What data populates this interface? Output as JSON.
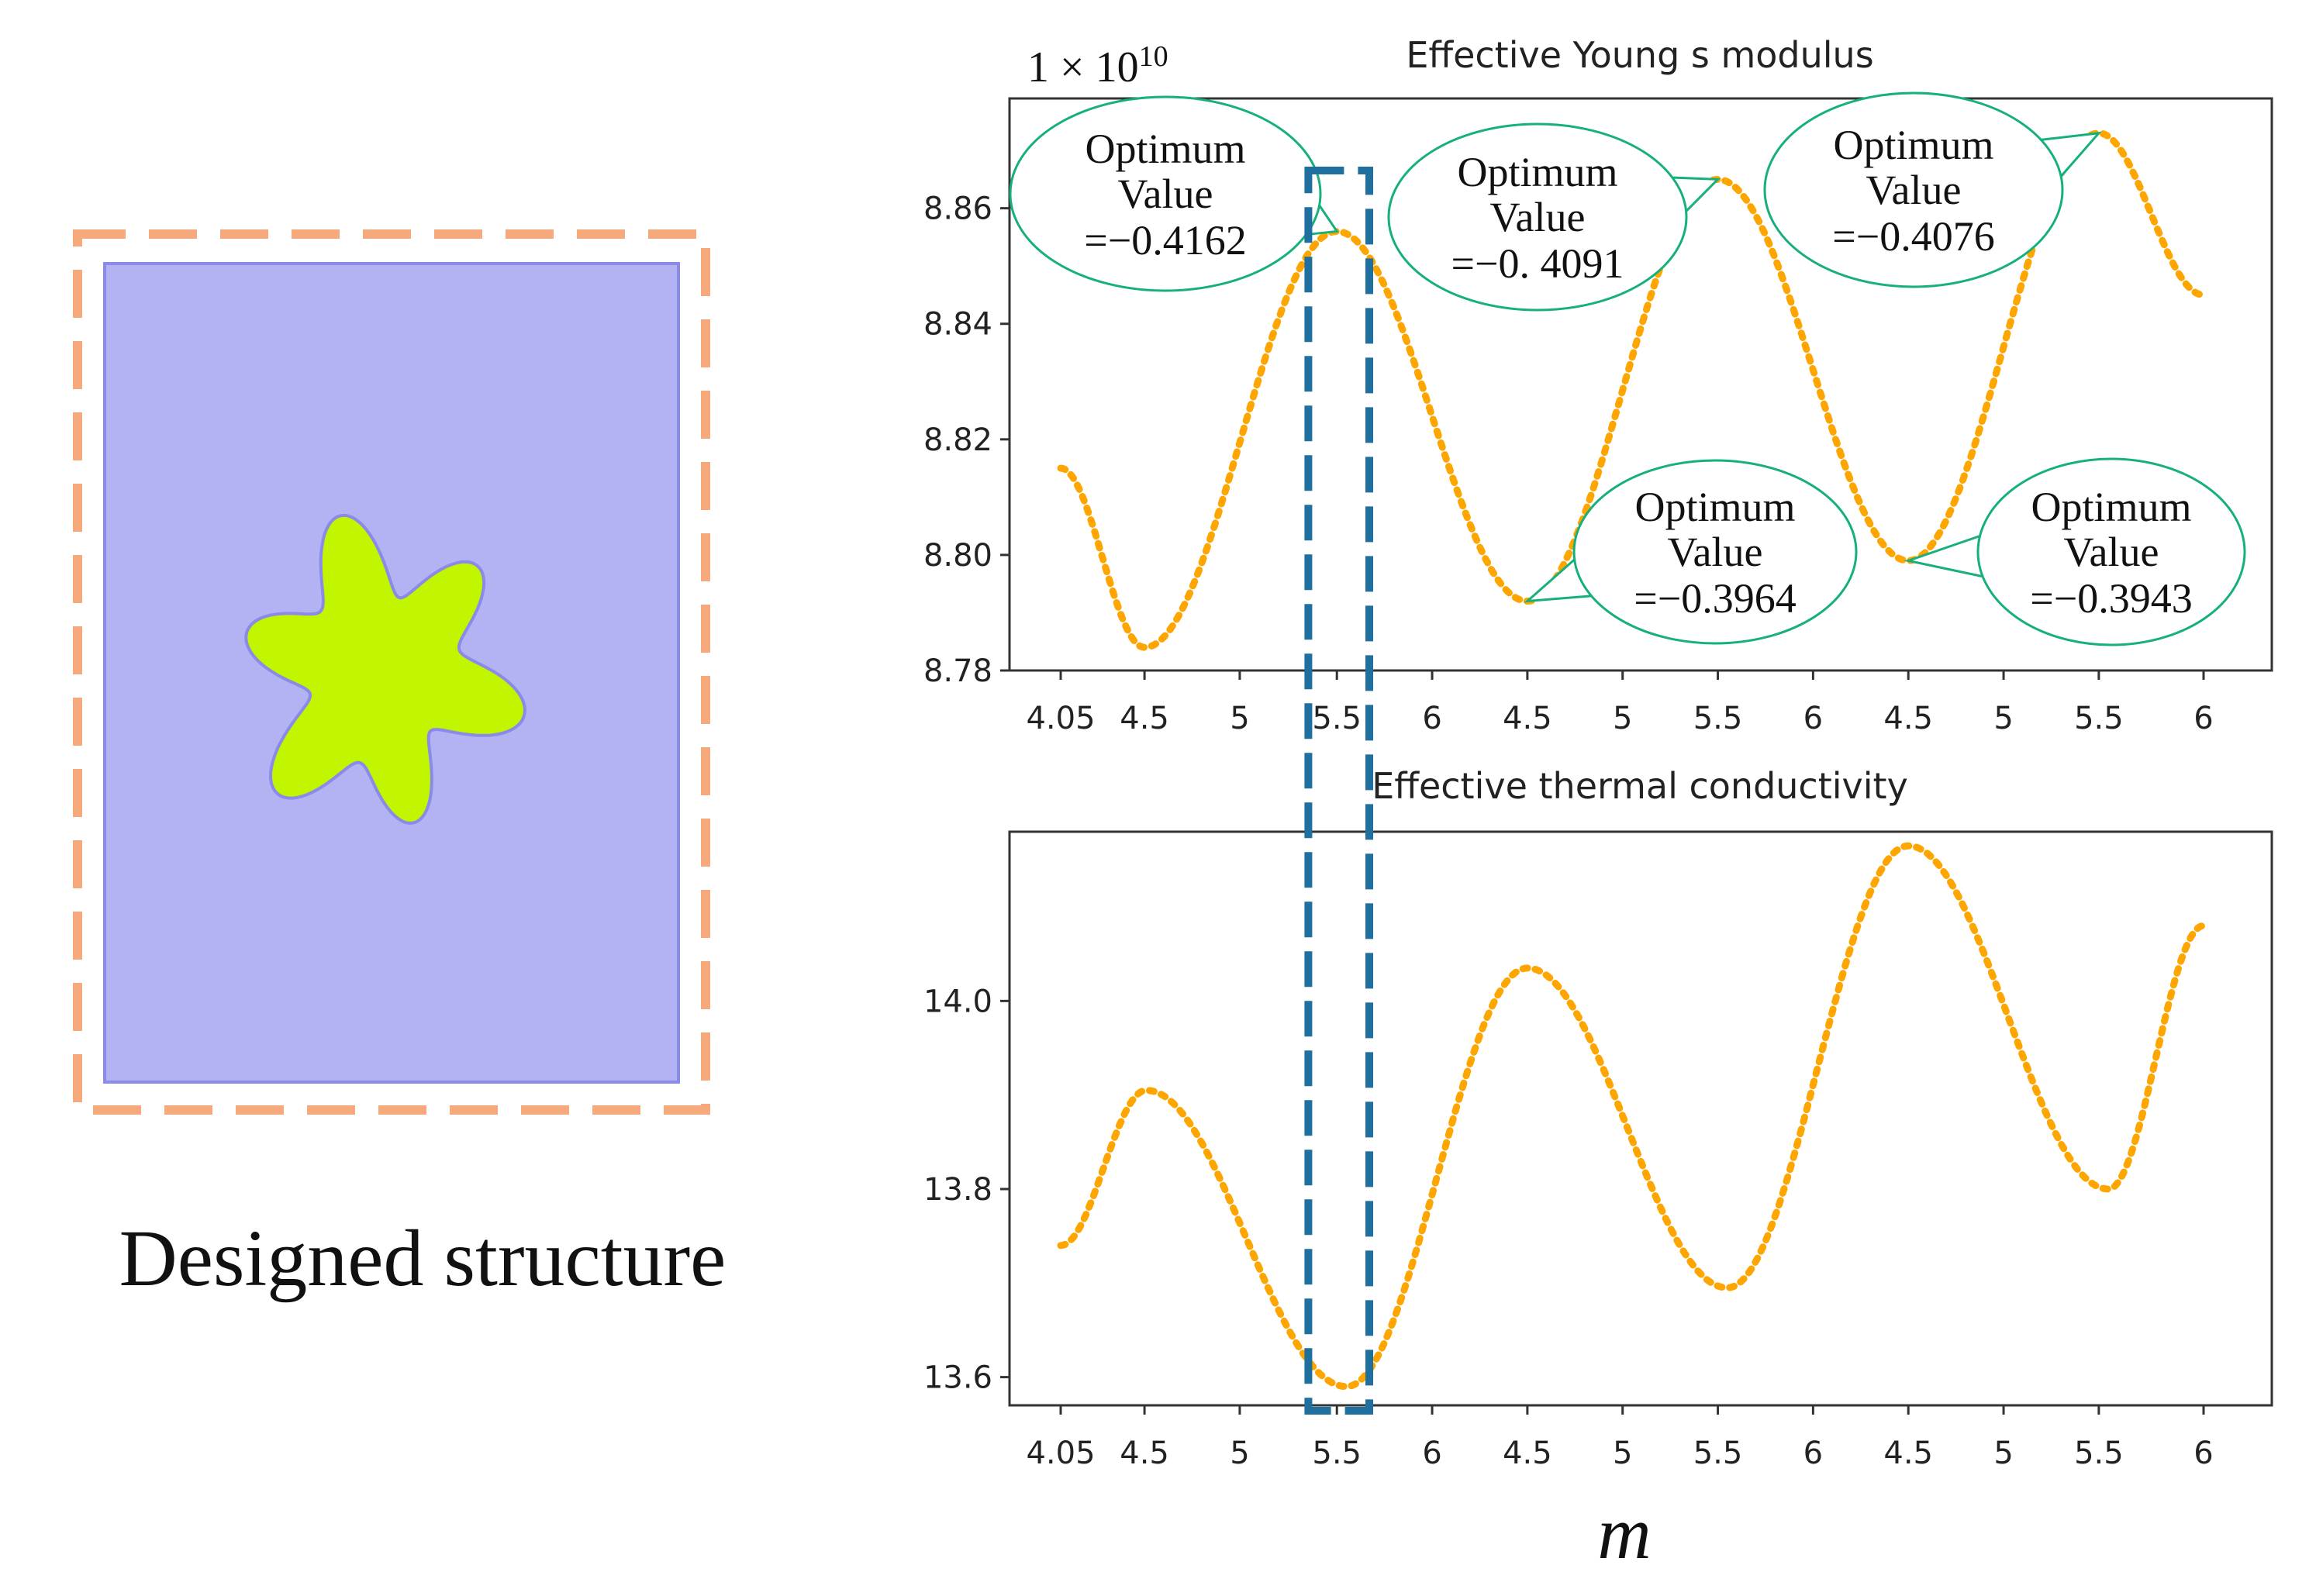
{
  "figure": {
    "structure_caption": "Designed structure",
    "x_axis_label": "m",
    "scale_label": "1 × 10",
    "scale_exponent": "10",
    "colors": {
      "matrix_fill": "#b3b3f3",
      "matrix_border": "#8a8ae8",
      "inclusion_fill": "#c2f500",
      "inclusion_border": "#8a8ae8",
      "frame_dash": "#f6a97a",
      "curve": "#ffa500",
      "highlight_box": "#1f6f9f",
      "callout_border": "#17b07a"
    }
  },
  "chart_data": [
    {
      "type": "line",
      "title": "Effective Young s modulus",
      "x_tick_labels": [
        "4.05",
        "4.5",
        "5",
        "5.5",
        "6",
        "4.5",
        "5",
        "5.5",
        "6",
        "4.5",
        "5",
        "5.5",
        "6"
      ],
      "y_ticks": [
        8.78,
        8.8,
        8.82,
        8.84,
        8.86
      ],
      "y_tick_labels": [
        "8.78",
        "8.80",
        "8.82",
        "8.84",
        "8.86"
      ],
      "ylim": [
        8.78,
        8.879
      ],
      "series": [
        {
          "values": [
            [
              0,
              8.815
            ],
            [
              0.44,
              8.784
            ],
            [
              1.45,
              8.856
            ],
            [
              2.45,
              8.792
            ],
            [
              3.45,
              8.865
            ],
            [
              4.45,
              8.799
            ],
            [
              5.45,
              8.873
            ],
            [
              6,
              8.845
            ]
          ]
        }
      ],
      "annotations": [
        {
          "label": "Optimum",
          "label2": "Value",
          "value": "=−0.4162",
          "x": 1.45,
          "y": 8.856
        },
        {
          "label": "Optimum",
          "label2": "Value",
          "value": "=−0. 4091",
          "x": 3.45,
          "y": 8.865
        },
        {
          "label": "Optimum",
          "label2": "Value",
          "value": "=−0.4076",
          "x": 5.45,
          "y": 8.873
        },
        {
          "label": "Optimum",
          "label2": "Value",
          "value": "=−0.3964",
          "x": 2.45,
          "y": 8.792
        },
        {
          "label": "Optimum",
          "label2": "Value",
          "value": "=−0.3943",
          "x": 4.45,
          "y": 8.799
        }
      ],
      "highlight_x": [
        1.3,
        1.62
      ]
    },
    {
      "type": "line",
      "title": "Effective thermal conductivity",
      "x_tick_labels": [
        "4.05",
        "4.5",
        "5",
        "5.5",
        "6",
        "4.5",
        "5",
        "5.5",
        "6",
        "4.5",
        "5",
        "5.5",
        "6"
      ],
      "y_ticks": [
        13.6,
        13.8,
        14.0
      ],
      "y_tick_labels": [
        "13.6",
        "13.8",
        "14.0"
      ],
      "ylim": [
        13.57,
        14.18
      ],
      "series": [
        {
          "values": [
            [
              0,
              13.74
            ],
            [
              0.45,
              13.905
            ],
            [
              1.5,
              13.59
            ],
            [
              2.45,
              14.035
            ],
            [
              3.5,
              13.695
            ],
            [
              4.45,
              14.165
            ],
            [
              5.5,
              13.8
            ],
            [
              6,
              14.08
            ]
          ]
        }
      ],
      "highlight_x": [
        1.3,
        1.62
      ]
    }
  ]
}
